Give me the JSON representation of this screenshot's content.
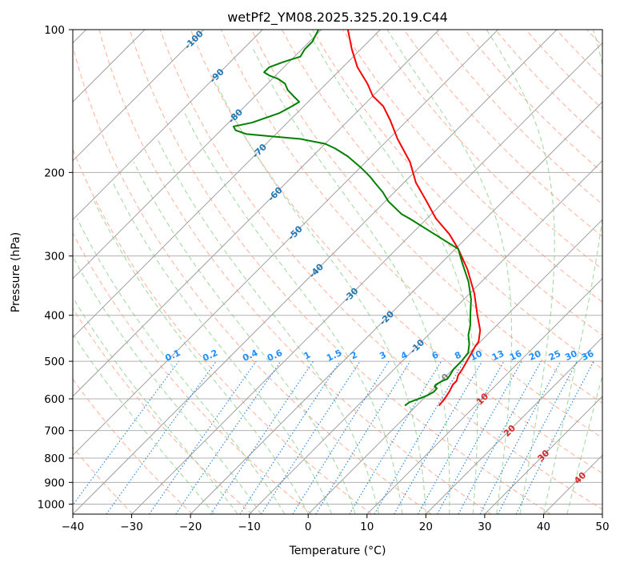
{
  "chart_data": {
    "type": "skew-t",
    "title": "wetPf2_YM08.2025.325.20.19.C44",
    "xlabel": "Temperature (°C)",
    "ylabel": "Pressure (hPa)",
    "xlim": [
      -40,
      50
    ],
    "ylim": [
      1050,
      100
    ],
    "y_scale": "log",
    "x_ticks": [
      "−40",
      "−30",
      "−20",
      "−10",
      "0",
      "10",
      "20",
      "30",
      "40",
      "50"
    ],
    "y_ticks": [
      "100",
      "200",
      "300",
      "400",
      "500",
      "600",
      "700",
      "800",
      "900",
      "1000"
    ],
    "grid": true,
    "skew_degrees": 45,
    "colors": {
      "temperature": "#ff0000",
      "dewpoint": "#008000",
      "isotherm": "#a0a0a0",
      "dry_adiabat": "#ff9e80",
      "moist_adiabat": "#78c878",
      "mixing_ratio": "#2080e0",
      "dry_adiabat_label": "#d62728",
      "isotherm_label": "#1f77b4",
      "mixing_label": "#1e90ff"
    },
    "isotherm_labels": [
      "-100",
      "-90",
      "-80",
      "-70",
      "-60",
      "-50",
      "-40",
      "-30",
      "-20",
      "-10"
    ],
    "dry_adiabat_labels": [
      "0",
      "10",
      "20",
      "30",
      "40"
    ],
    "mixing_ratio_labels": [
      "0.1",
      "0.2",
      "0.4",
      "0.6",
      "1",
      "1.5",
      "2",
      "3",
      "4",
      "6",
      "8",
      "10",
      "13",
      "16",
      "20",
      "25",
      "30",
      "36"
    ],
    "series": [
      {
        "kind": "temperature",
        "points": [
          [
            620,
            3.8
          ],
          [
            600,
            3.6
          ],
          [
            580,
            3.2
          ],
          [
            560,
            2.6
          ],
          [
            550,
            2.6
          ],
          [
            535,
            1.9
          ],
          [
            520,
            1.6
          ],
          [
            500,
            1.0
          ],
          [
            480,
            0.4
          ],
          [
            465,
            -0.1
          ],
          [
            455,
            -0.3
          ],
          [
            430,
            -2.0
          ],
          [
            400,
            -5.0
          ],
          [
            360,
            -9.2
          ],
          [
            320,
            -14.5
          ],
          [
            290,
            -19.5
          ],
          [
            270,
            -23.5
          ],
          [
            250,
            -28.5
          ],
          [
            230,
            -33
          ],
          [
            210,
            -38
          ],
          [
            190,
            -42.5
          ],
          [
            170,
            -48.5
          ],
          [
            155,
            -53
          ],
          [
            145,
            -56.5
          ],
          [
            138,
            -60
          ],
          [
            130,
            -63
          ],
          [
            120,
            -67.5
          ],
          [
            110,
            -71.5
          ],
          [
            100,
            -75.5
          ]
        ]
      },
      {
        "kind": "dewpoint",
        "points": [
          [
            620,
            -2.0
          ],
          [
            610,
            -1.8
          ],
          [
            600,
            -0.8
          ],
          [
            590,
            0.1
          ],
          [
            580,
            0.6
          ],
          [
            570,
            0.5
          ],
          [
            565,
            -0.2
          ],
          [
            560,
            -0.3
          ],
          [
            550,
            0.2
          ],
          [
            545,
            0.7
          ],
          [
            535,
            0.5
          ],
          [
            520,
            0.1
          ],
          [
            500,
            0.1
          ],
          [
            480,
            -0.2
          ],
          [
            460,
            -1.5
          ],
          [
            440,
            -3.2
          ],
          [
            420,
            -4.5
          ],
          [
            400,
            -6.2
          ],
          [
            370,
            -8.8
          ],
          [
            340,
            -12.2
          ],
          [
            310,
            -16.5
          ],
          [
            290,
            -19.5
          ],
          [
            270,
            -26
          ],
          [
            250,
            -33
          ],
          [
            245,
            -35
          ],
          [
            230,
            -39.5
          ],
          [
            220,
            -42
          ],
          [
            210,
            -45
          ],
          [
            205,
            -46.5
          ],
          [
            200,
            -48.2
          ],
          [
            195,
            -50
          ],
          [
            185,
            -54
          ],
          [
            178,
            -57.5
          ],
          [
            174,
            -60
          ],
          [
            170,
            -65
          ],
          [
            168,
            -70
          ],
          [
            166,
            -75
          ],
          [
            163,
            -77.5
          ],
          [
            160,
            -78.5
          ],
          [
            157,
            -76
          ],
          [
            150,
            -73
          ],
          [
            145,
            -72
          ],
          [
            142,
            -71.5
          ],
          [
            138,
            -73.5
          ],
          [
            134,
            -75.5
          ],
          [
            130,
            -77
          ],
          [
            127,
            -79
          ],
          [
            125,
            -81
          ],
          [
            123,
            -82.5
          ],
          [
            120,
            -82.5
          ],
          [
            117,
            -81
          ],
          [
            114,
            -79
          ],
          [
            110,
            -79.5
          ],
          [
            106,
            -79.5
          ],
          [
            103,
            -80
          ],
          [
            100,
            -80.5
          ]
        ]
      }
    ]
  }
}
